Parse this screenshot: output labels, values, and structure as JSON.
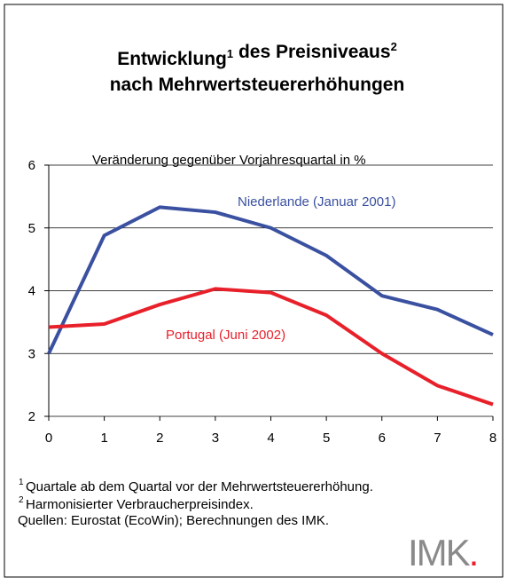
{
  "chart_data": {
    "type": "line",
    "title_line1": [
      {
        "text": "Entwicklung",
        "sup": "1"
      },
      {
        "text": " des Preisniveaus",
        "sup": "2"
      }
    ],
    "title_line2": "nach Mehrwertsteuererhöhungen",
    "y_label": "Veränderung gegenüber Vorjahresquartal in %",
    "x": [
      0,
      1,
      2,
      3,
      4,
      5,
      6,
      7,
      8
    ],
    "series": [
      {
        "name": "Niederlande (Januar 2001)",
        "color": "#3a50a0",
        "values": [
          3.0,
          4.88,
          5.33,
          5.25,
          5.0,
          4.56,
          3.92,
          3.7,
          3.3
        ]
      },
      {
        "name": "Portugal (Juni 2002)",
        "color": "#e8202a",
        "values": [
          3.42,
          3.47,
          3.78,
          4.03,
          3.97,
          3.61,
          3.0,
          2.49,
          2.19
        ]
      }
    ],
    "xlim": [
      0,
      8
    ],
    "xticks": [
      0,
      1,
      2,
      3,
      4,
      5,
      6,
      7,
      8
    ],
    "ylim": [
      2,
      6
    ],
    "yticks": [
      2,
      3,
      4,
      5,
      6
    ],
    "grid": true
  },
  "footnotes": [
    {
      "mark": "1",
      "text": "Quartale ab dem Quartal vor der Mehrwertsteuererhöhung."
    },
    {
      "mark": "2",
      "text": "Harmonisierter Verbraucherpreisindex."
    }
  ],
  "source": "Quellen: Eurostat (EcoWin); Berechnungen des IMK.",
  "logo": {
    "text": "IMK",
    "dot": "."
  }
}
